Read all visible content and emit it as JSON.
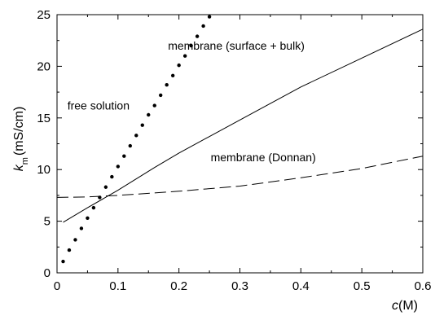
{
  "chart_data": {
    "type": "line",
    "xlabel": "c(M)",
    "xlabel_italic": "c",
    "xlabel_unit": "(M)",
    "ylabel_italic": "k",
    "ylabel_sub": "m",
    "ylabel_unit": "(mS/cm)",
    "xlim": [
      0,
      0.6
    ],
    "ylim": [
      0,
      25
    ],
    "xticks": [
      0,
      0.1,
      0.2,
      0.3,
      0.4,
      0.5,
      0.6
    ],
    "xtick_labels": [
      "0",
      "0.1",
      "0.2",
      "0.3",
      "0.4",
      "0.5",
      "0.6"
    ],
    "yticks": [
      0,
      5,
      10,
      15,
      20,
      25
    ],
    "ytick_labels": [
      "0",
      "5",
      "10",
      "15",
      "20",
      "25"
    ],
    "grid": false,
    "series": [
      {
        "name": "free solution",
        "style": "dotted",
        "color": "#000000",
        "x": [
          0.01,
          0.02,
          0.03,
          0.04,
          0.05,
          0.06,
          0.07,
          0.08,
          0.09,
          0.1,
          0.11,
          0.12,
          0.13,
          0.14,
          0.15,
          0.16,
          0.17,
          0.18,
          0.19,
          0.2,
          0.21,
          0.22,
          0.23,
          0.24,
          0.25
        ],
        "y": [
          1.1,
          2.2,
          3.2,
          4.3,
          5.3,
          6.3,
          7.3,
          8.3,
          9.3,
          10.3,
          11.3,
          12.3,
          13.3,
          14.3,
          15.3,
          16.2,
          17.2,
          18.2,
          19.1,
          20.1,
          21.0,
          22.0,
          22.9,
          23.9,
          24.8
        ]
      },
      {
        "name": "membrane (surface + bulk)",
        "style": "solid",
        "color": "#000000",
        "x": [
          0.01,
          0.05,
          0.1,
          0.16,
          0.2,
          0.3,
          0.4,
          0.5,
          0.6
        ],
        "y": [
          4.9,
          6.3,
          8.0,
          10.2,
          11.6,
          14.8,
          18.0,
          20.8,
          23.6
        ]
      },
      {
        "name": "membrane (Donnan)",
        "style": "dashed",
        "color": "#000000",
        "x": [
          0.0,
          0.05,
          0.1,
          0.15,
          0.2,
          0.3,
          0.4,
          0.5,
          0.6
        ],
        "y": [
          7.3,
          7.35,
          7.5,
          7.7,
          7.9,
          8.4,
          9.2,
          10.1,
          11.3
        ]
      }
    ],
    "annotations": [
      {
        "text": "membrane (surface + bulk)",
        "x": 0.182,
        "y": 22.0
      },
      {
        "text": "free solution",
        "x": 0.017,
        "y": 16.2
      },
      {
        "text": "membrane (Donnan)",
        "x": 0.252,
        "y": 11.2
      }
    ]
  }
}
